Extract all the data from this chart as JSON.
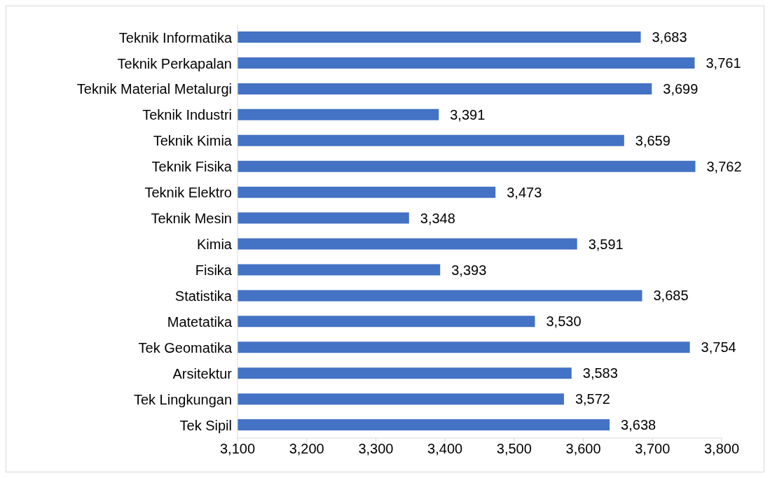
{
  "chart_data": {
    "type": "bar",
    "orientation": "horizontal",
    "categories": [
      "Teknik Informatika",
      "Teknik Perkapalan",
      "Teknik Material Metalurgi",
      "Teknik Industri",
      "Teknik Kimia",
      "Teknik Fisika",
      "Teknik Elektro",
      "Teknik Mesin",
      "Kimia",
      "Fisika",
      "Statistika",
      "Matetatika",
      "Tek Geomatika",
      "Arsitektur",
      "Tek Lingkungan",
      "Tek Sipil"
    ],
    "values": [
      3683,
      3761,
      3699,
      3391,
      3659,
      3762,
      3473,
      3348,
      3591,
      3393,
      3685,
      3530,
      3754,
      3583,
      3572,
      3638
    ],
    "value_labels": [
      "3,683",
      "3,761",
      "3,699",
      "3,391",
      "3,659",
      "3,762",
      "3,473",
      "3,348",
      "3,591",
      "3,393",
      "3,685",
      "3,530",
      "3,754",
      "3,583",
      "3,572",
      "3,638"
    ],
    "color": "#4472c4",
    "xlim": [
      3100,
      3800
    ],
    "xticks": [
      {
        "value": 3100,
        "label": "3,100"
      },
      {
        "value": 3200,
        "label": "3,200"
      },
      {
        "value": 3300,
        "label": "3,300"
      },
      {
        "value": 3400,
        "label": "3,400"
      },
      {
        "value": 3500,
        "label": "3,500"
      },
      {
        "value": 3600,
        "label": "3,600"
      },
      {
        "value": 3700,
        "label": "3,700"
      },
      {
        "value": 3800,
        "label": "3,800"
      }
    ]
  }
}
